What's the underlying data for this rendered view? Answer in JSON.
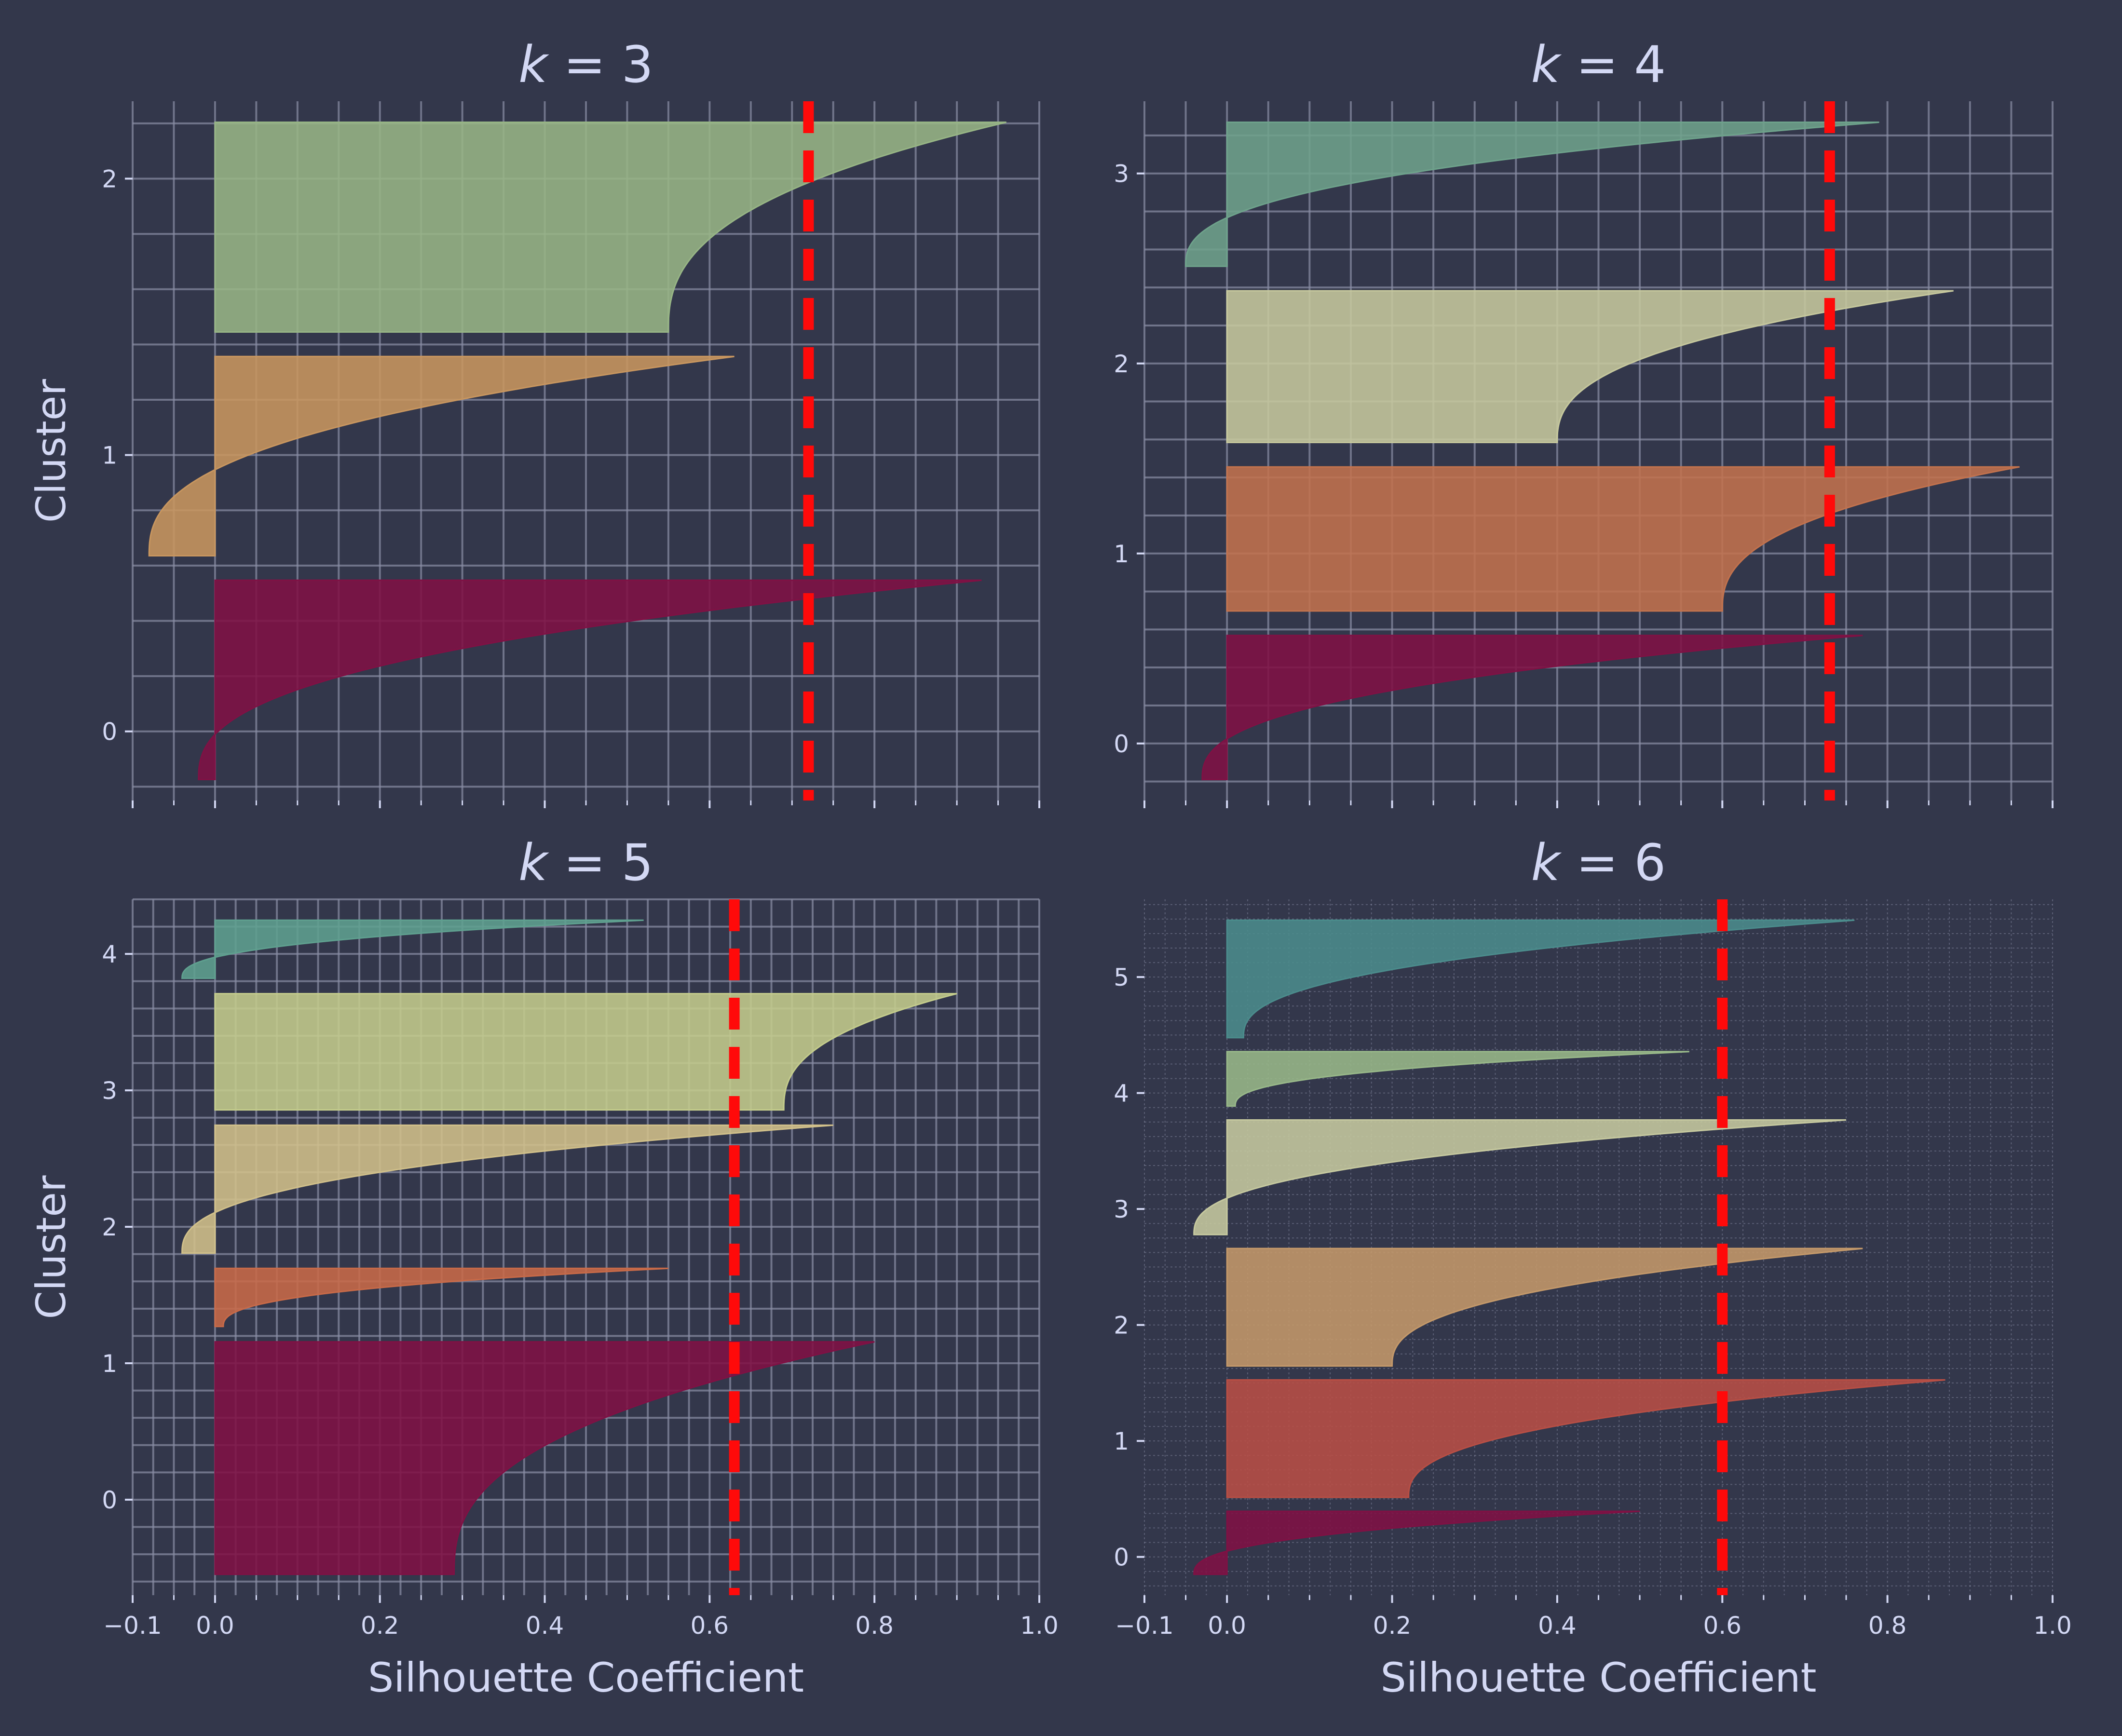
{
  "chart_data": [
    {
      "type": "area",
      "title_var": "k",
      "title_eq": " = ",
      "title_num": "3",
      "ylabel": "Cluster",
      "xlabel": "",
      "xlim": [
        -0.1,
        1.0
      ],
      "x_ticks": [],
      "y_ticks": [
        0,
        1,
        2
      ],
      "grid": "dense",
      "mean_silhouette": 0.72,
      "clusters": [
        {
          "label": "0",
          "color": "#7f1144",
          "min": -0.02,
          "max": 0.93
        },
        {
          "label": "1",
          "color": "#c8965f",
          "min": -0.08,
          "max": 0.63
        },
        {
          "label": "2",
          "color": "#97b585",
          "min": 0.55,
          "max": 0.96
        }
      ]
    },
    {
      "type": "area",
      "title_var": "k",
      "title_eq": " = ",
      "title_num": "4",
      "ylabel": "",
      "xlabel": "",
      "xlim": [
        -0.1,
        1.0
      ],
      "x_ticks": [],
      "y_ticks": [
        0,
        1,
        2,
        3
      ],
      "grid": "dense",
      "mean_silhouette": 0.73,
      "clusters": [
        {
          "label": "0",
          "color": "#7f1144",
          "min": -0.03,
          "max": 0.77
        },
        {
          "label": "1",
          "color": "#c2724d",
          "min": 0.6,
          "max": 0.96
        },
        {
          "label": "2",
          "color": "#c6c89d",
          "min": 0.4,
          "max": 0.88
        },
        {
          "label": "3",
          "color": "#6ea28b",
          "min": -0.05,
          "max": 0.79
        }
      ]
    },
    {
      "type": "area",
      "title_var": "k",
      "title_eq": " = ",
      "title_num": "5",
      "ylabel": "Cluster",
      "xlabel": "Silhouette Coefficient",
      "xlim": [
        -0.1,
        1.0
      ],
      "x_ticks": [
        "−0.1",
        "0.0",
        "0.2",
        "0.4",
        "0.6",
        "0.8",
        "1.0"
      ],
      "y_ticks": [
        0,
        1,
        2,
        3,
        4
      ],
      "grid": "dense",
      "mean_silhouette": 0.63,
      "clusters": [
        {
          "label": "0",
          "color": "#7f1144",
          "min": 0.29,
          "max": 0.8
        },
        {
          "label": "1",
          "color": "#c86a48",
          "min": 0.01,
          "max": 0.55
        },
        {
          "label": "2",
          "color": "#d1c08a",
          "min": -0.04,
          "max": 0.75
        },
        {
          "label": "3",
          "color": "#c4cc8c",
          "min": 0.69,
          "max": 0.9
        },
        {
          "label": "4",
          "color": "#5fa08f",
          "min": -0.04,
          "max": 0.52
        }
      ]
    },
    {
      "type": "area",
      "title_var": "k",
      "title_eq": " = ",
      "title_num": "6",
      "ylabel": "",
      "xlabel": "Silhouette Coefficient",
      "xlim": [
        -0.1,
        1.0
      ],
      "x_ticks": [
        "−0.1",
        "0.0",
        "0.2",
        "0.4",
        "0.6",
        "0.8",
        "1.0"
      ],
      "y_ticks": [
        0,
        1,
        2,
        3,
        4,
        5
      ],
      "grid": "fine",
      "mean_silhouette": 0.6,
      "clusters": [
        {
          "label": "0",
          "color": "#7f1144",
          "min": -0.04,
          "max": 0.5
        },
        {
          "label": "1",
          "color": "#b84f45",
          "min": 0.22,
          "max": 0.87
        },
        {
          "label": "2",
          "color": "#c4996a",
          "min": 0.2,
          "max": 0.77
        },
        {
          "label": "3",
          "color": "#c6c99f",
          "min": -0.04,
          "max": 0.75
        },
        {
          "label": "4",
          "color": "#98b889",
          "min": 0.01,
          "max": 0.56
        },
        {
          "label": "5",
          "color": "#4b8c8c",
          "min": 0.02,
          "max": 0.76
        }
      ]
    }
  ]
}
